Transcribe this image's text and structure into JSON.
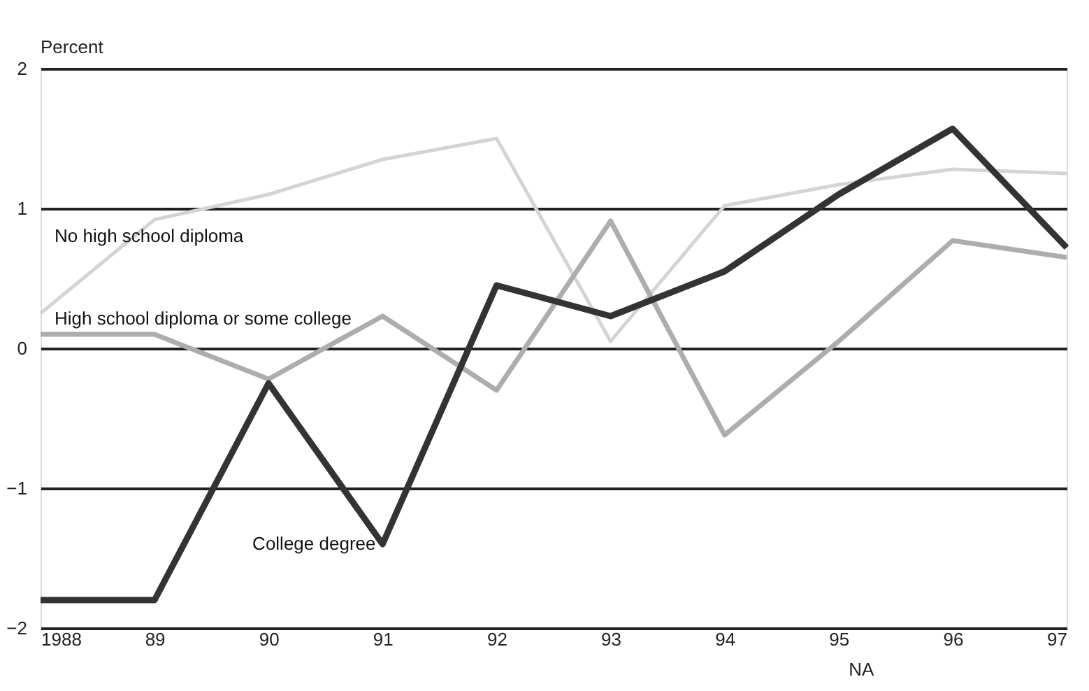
{
  "chart_data": {
    "type": "line",
    "ylabel": "Percent",
    "xlabel": "NA",
    "x": [
      1988,
      1989,
      1990,
      1991,
      1992,
      1993,
      1994,
      1995,
      1996,
      1997
    ],
    "series": [
      {
        "name": "No high school diploma",
        "color": "#d4d4d4",
        "values": [
          0.25,
          0.92,
          1.1,
          1.35,
          1.5,
          0.05,
          1.02,
          1.17,
          1.28,
          1.25
        ]
      },
      {
        "name": "High school diploma or some college",
        "color": "#adadad",
        "values": [
          0.1,
          0.1,
          -0.22,
          0.23,
          -0.3,
          0.91,
          -0.62,
          0.05,
          0.77,
          0.65
        ]
      },
      {
        "name": "College degree",
        "color": "#333333",
        "values": [
          -1.8,
          -1.8,
          -0.25,
          -1.4,
          0.45,
          0.23,
          0.55,
          1.1,
          1.57,
          0.72
        ]
      }
    ],
    "xlim": [
      1988,
      1997
    ],
    "xticks": [
      {
        "value": 1988,
        "label": "1988"
      },
      {
        "value": 1989,
        "label": "89"
      },
      {
        "value": 1990,
        "label": "90"
      },
      {
        "value": 1991,
        "label": "91"
      },
      {
        "value": 1992,
        "label": "92"
      },
      {
        "value": 1993,
        "label": "93"
      },
      {
        "value": 1994,
        "label": "94"
      },
      {
        "value": 1995,
        "label": "95"
      },
      {
        "value": 1996,
        "label": "96"
      },
      {
        "value": 1997,
        "label": "97"
      }
    ],
    "ylim": [
      -2,
      2
    ],
    "yticks": [
      -2,
      -1,
      0,
      1,
      2
    ],
    "grid": "y",
    "line_style": "solid",
    "marker": "none"
  }
}
